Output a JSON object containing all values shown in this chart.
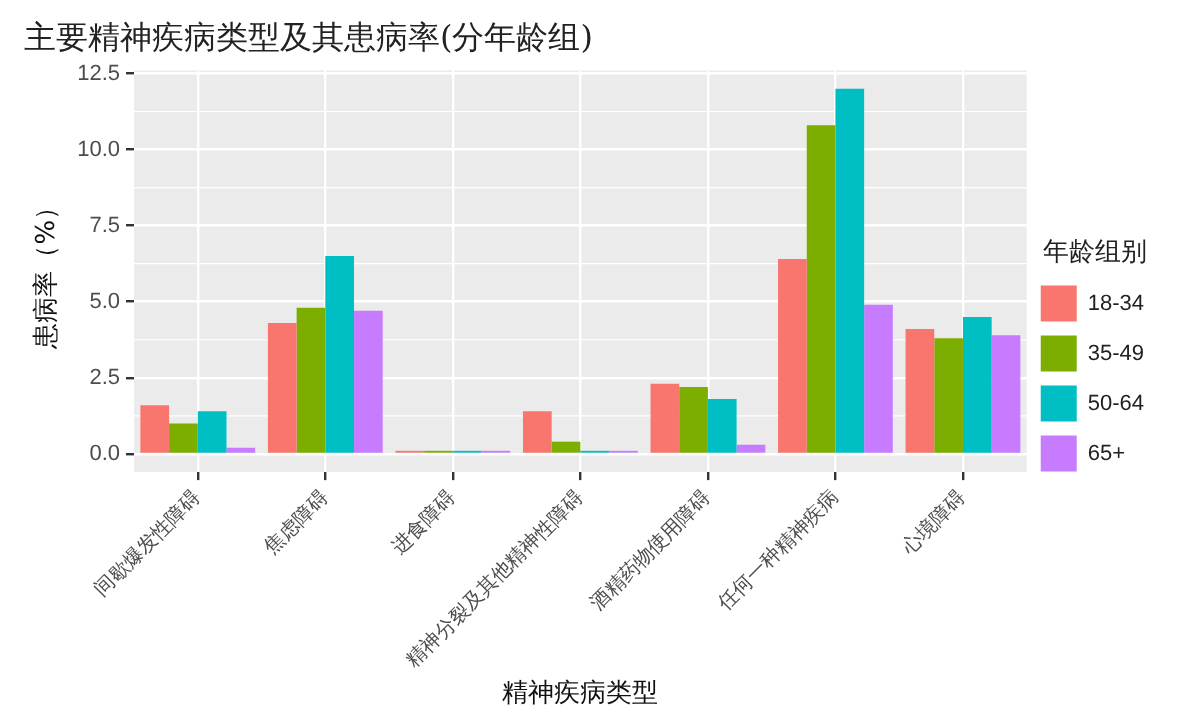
{
  "chart_data": {
    "type": "bar",
    "title": "主要精神疾病类型及其患病率(分年龄组)",
    "xlabel": "精神疾病类型",
    "ylabel": "患病率（%）",
    "legend_title": "年龄组别",
    "categories": [
      "间歇爆发性障碍",
      "焦虑障碍",
      "进食障碍",
      "精神分裂及其他精神性障碍",
      "酒精药物使用障碍",
      "任何一种精神疾病",
      "心境障碍"
    ],
    "series": [
      {
        "name": "18-34",
        "color": "#f8766d",
        "values": [
          1.6,
          4.3,
          0.1,
          1.4,
          2.3,
          6.4,
          4.1
        ]
      },
      {
        "name": "35-49",
        "color": "#7cae00",
        "values": [
          1.0,
          4.8,
          0.1,
          0.4,
          2.2,
          10.8,
          3.8
        ]
      },
      {
        "name": "50-64",
        "color": "#00bfc4",
        "values": [
          1.4,
          6.5,
          0.1,
          0.1,
          1.8,
          12.0,
          4.5
        ]
      },
      {
        "name": "65+",
        "color": "#c77cff",
        "values": [
          0.2,
          4.7,
          0.1,
          0.1,
          0.3,
          4.9,
          3.9
        ]
      }
    ],
    "ylim": [
      -0.6,
      12.6
    ],
    "yticks": [
      {
        "value": 0,
        "label": "0.0"
      },
      {
        "value": 2.5,
        "label": "2.5"
      },
      {
        "value": 5,
        "label": "5.0"
      },
      {
        "value": 7.5,
        "label": "7.5"
      },
      {
        "value": 10,
        "label": "10.0"
      },
      {
        "value": 12.5,
        "label": "12.5"
      }
    ],
    "grid": true,
    "legend": "right"
  }
}
